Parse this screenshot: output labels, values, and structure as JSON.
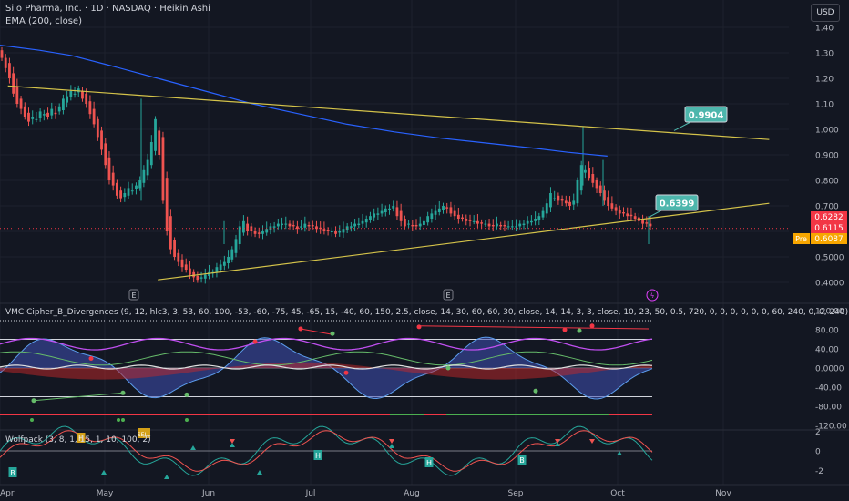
{
  "header": {
    "symbol_line": "Silo Pharma, Inc. · 1D · NASDAQ · Heikin Ashi",
    "ema_label": "EMA (200, close)",
    "currency": "USD"
  },
  "chart_data": [
    {
      "type": "candlestick",
      "title": "Silo Pharma, Inc. · 1D · NASDAQ · Heikin Ashi",
      "x_ticks": [
        "Apr",
        "May",
        "Jun",
        "Jul",
        "Aug",
        "Sep",
        "Oct",
        "Nov"
      ],
      "y_ticks": [
        "1.40",
        "1.30",
        "1.20",
        "1.10",
        "1.000",
        "0.900",
        "0.800",
        "0.700",
        "0.6000",
        "0.5000",
        "0.4000"
      ],
      "ylim": [
        0.36,
        1.46
      ],
      "price_labels": [
        {
          "text": "0.6282",
          "color": "#f23645"
        },
        {
          "text": "0.6115",
          "color": "#f23645"
        },
        {
          "text": "0.6087",
          "color": "#f7a600",
          "prefix": "Pre"
        }
      ],
      "annotations": [
        "0.9904",
        "0.6399"
      ],
      "earnings_markers": [
        "E",
        "E"
      ],
      "series": [
        {
          "name": "EMA (200, close)",
          "color": "#2962ff",
          "points": [
            [
              0,
              1.33
            ],
            [
              0.05,
              1.31
            ],
            [
              0.09,
              1.29
            ],
            [
              0.14,
              1.25
            ],
            [
              0.2,
              1.2
            ],
            [
              0.26,
              1.15
            ],
            [
              0.32,
              1.1
            ],
            [
              0.38,
              1.06
            ],
            [
              0.44,
              1.02
            ],
            [
              0.5,
              0.99
            ],
            [
              0.56,
              0.965
            ],
            [
              0.62,
              0.945
            ],
            [
              0.68,
              0.925
            ],
            [
              0.72,
              0.91
            ],
            [
              0.77,
              0.895
            ]
          ]
        },
        {
          "name": "trendline-upper",
          "color": "#d4c34a",
          "points": [
            [
              0.01,
              1.17
            ],
            [
              0.975,
              0.96
            ]
          ]
        },
        {
          "name": "trendline-lower",
          "color": "#d4c34a",
          "points": [
            [
              0.2,
              0.41
            ],
            [
              0.975,
              0.71
            ]
          ]
        }
      ],
      "candles": [
        1.28,
        1.24,
        1.2,
        1.14,
        1.1,
        1.08,
        1.05,
        1.03,
        1.05,
        1.04,
        1.07,
        1.06,
        1.05,
        1.08,
        1.06,
        1.09,
        1.12,
        1.13,
        1.15,
        1.14,
        1.16,
        1.12,
        1.1,
        1.06,
        1.02,
        0.97,
        0.92,
        0.86,
        0.8,
        0.78,
        0.74,
        0.73,
        0.75,
        0.77,
        0.76,
        0.78,
        0.8,
        0.84,
        0.88,
        0.95,
        1.04,
        0.9,
        0.72,
        0.6,
        0.53,
        0.5,
        0.48,
        0.46,
        0.45,
        0.43,
        0.42,
        0.41,
        0.42,
        0.43,
        0.44,
        0.44,
        0.46,
        0.47,
        0.48,
        0.5,
        0.53,
        0.57,
        0.62,
        0.64,
        0.6,
        0.6,
        0.59,
        0.59,
        0.6,
        0.61,
        0.62,
        0.62,
        0.63,
        0.63,
        0.63,
        0.62,
        0.62,
        0.61,
        0.62,
        0.63,
        0.62,
        0.62,
        0.61,
        0.61,
        0.6,
        0.6,
        0.6,
        0.59,
        0.6,
        0.61,
        0.62,
        0.62,
        0.63,
        0.63,
        0.64,
        0.65,
        0.66,
        0.67,
        0.67,
        0.68,
        0.69,
        0.69,
        0.7,
        0.66,
        0.64,
        0.62,
        0.63,
        0.62,
        0.62,
        0.63,
        0.64,
        0.66,
        0.67,
        0.68,
        0.69,
        0.7,
        0.69,
        0.67,
        0.66,
        0.65,
        0.65,
        0.64,
        0.64,
        0.64,
        0.63,
        0.63,
        0.63,
        0.62,
        0.62,
        0.63,
        0.62,
        0.62,
        0.62,
        0.62,
        0.62,
        0.63,
        0.63,
        0.64,
        0.64,
        0.65,
        0.66,
        0.68,
        0.71,
        0.75,
        0.73,
        0.72,
        0.72,
        0.71,
        0.7,
        0.72,
        0.8,
        0.86,
        0.84,
        0.81,
        0.79,
        0.77,
        0.75,
        0.72,
        0.7,
        0.69,
        0.68,
        0.67,
        0.67,
        0.66,
        0.66,
        0.65,
        0.64,
        0.63,
        0.63,
        0.62
      ]
    },
    {
      "type": "line",
      "title": "VMC Cipher_B_Divergences (9, 12, hlc3, 3, 53, 60, 100, -53, -60, -75, 45, -65, 15, -40, 60, 150, 2.5, close, 14, 30, 60, 60, 30, close, 14, 14, 3, 3, close, 10, 23, 50, 0.5, 720, 0, 0, 0, 0, 0, 0, 60, 240, 0, 0, 240)",
      "y_ticks": [
        "120.00",
        "80.00",
        "40.00",
        "0.0000",
        "-40.00",
        "-80.00",
        "-120.00"
      ],
      "ylim": [
        -125,
        125
      ]
    },
    {
      "type": "line",
      "title": "Wolfpack (3, 8, 1, 15, 1, 10, 100, 2)",
      "y_ticks": [
        "2",
        "0",
        "-2"
      ],
      "ylim": [
        -3.6,
        3.6
      ],
      "labels": [
        "B",
        "H",
        "SELL",
        "H",
        "H",
        "B"
      ]
    }
  ]
}
